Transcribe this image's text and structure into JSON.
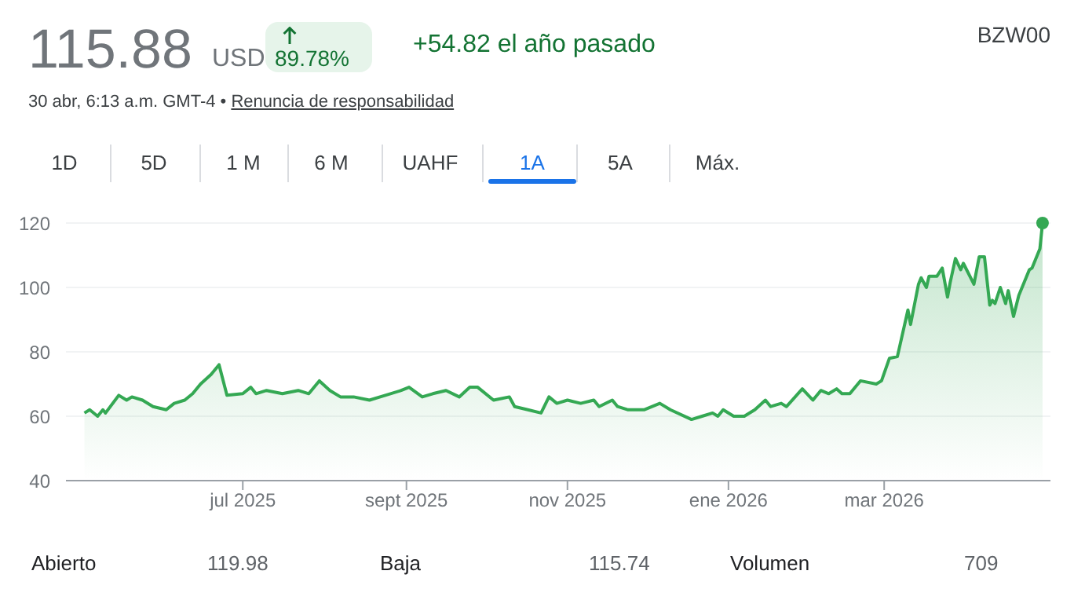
{
  "chart_data": {
    "type": "area",
    "title": "115.88",
    "subtitle": "+54.82 el año pasado",
    "annotations": [
      "USD",
      "89.78%",
      "BZW00",
      "30 abr, 6:13 a.m. GMT-4 • ",
      "Renuncia de responsabilidad",
      "1D",
      "5D",
      "1 M",
      "6 M",
      "UAHF",
      "1A",
      "5A",
      "Máx.",
      "Abierto",
      "119.98",
      "Baja",
      "115.74",
      "Volumen",
      "709"
    ],
    "x": [
      "2025-05-02",
      "2025-05-04",
      "2025-05-07",
      "2025-05-09",
      "2025-05-10",
      "2025-05-15",
      "2025-05-18",
      "2025-05-20",
      "2025-05-24",
      "2025-05-28",
      "2025-06-02",
      "2025-06-05",
      "2025-06-09",
      "2025-06-12",
      "2025-06-15",
      "2025-06-19",
      "2025-06-22",
      "2025-06-25",
      "2025-07-01",
      "2025-07-04",
      "2025-07-06",
      "2025-07-10",
      "2025-07-16",
      "2025-07-22",
      "2025-07-26",
      "2025-07-30",
      "2025-08-03",
      "2025-08-07",
      "2025-08-12",
      "2025-08-18",
      "2025-08-24",
      "2025-08-30",
      "2025-09-02",
      "2025-09-07",
      "2025-09-11",
      "2025-09-16",
      "2025-09-21",
      "2025-09-25",
      "2025-09-28",
      "2025-10-04",
      "2025-10-10",
      "2025-10-12",
      "2025-10-17",
      "2025-10-22",
      "2025-10-25",
      "2025-10-28",
      "2025-11-01",
      "2025-11-06",
      "2025-11-11",
      "2025-11-13",
      "2025-11-18",
      "2025-11-20",
      "2025-11-24",
      "2025-11-30",
      "2025-12-06",
      "2025-12-10",
      "2025-12-18",
      "2025-12-22",
      "2025-12-26",
      "2025-12-28",
      "2025-12-30",
      "2026-01-03",
      "2026-01-07",
      "2026-01-11",
      "2026-01-15",
      "2026-01-17",
      "2026-01-21",
      "2026-01-23",
      "2026-01-29",
      "2026-02-02",
      "2026-02-05",
      "2026-02-08",
      "2026-02-11",
      "2026-02-13",
      "2026-02-16",
      "2026-02-20",
      "2026-02-26",
      "2026-02-28",
      "2026-03-03",
      "2026-03-06",
      "2026-03-10",
      "2026-03-11",
      "2026-03-14",
      "2026-03-15",
      "2026-03-17",
      "2026-03-18",
      "2026-03-21",
      "2026-03-23",
      "2026-03-25",
      "2026-03-26",
      "2026-03-28",
      "2026-03-30",
      "2026-03-31",
      "2026-04-04",
      "2026-04-06",
      "2026-04-08",
      "2026-04-10",
      "2026-04-11",
      "2026-04-12",
      "2026-04-14",
      "2026-04-16",
      "2026-04-17",
      "2026-04-19",
      "2026-04-21",
      "2026-04-25",
      "2026-04-26",
      "2026-04-29",
      "2026-04-30"
    ],
    "series": [
      {
        "color": "#34a853",
        "values": [
          61,
          62,
          60,
          62,
          61,
          66.5,
          65,
          66,
          65,
          63,
          62,
          64,
          65,
          67,
          70,
          73,
          76,
          66.5,
          67,
          69,
          67,
          68,
          67,
          68,
          67,
          71,
          68,
          66,
          66,
          65,
          66.5,
          68,
          69,
          66,
          67,
          68,
          66,
          69,
          69,
          65,
          66,
          63,
          62,
          61,
          66,
          64,
          65,
          64,
          65,
          63,
          65,
          63,
          62,
          62,
          64,
          62,
          59,
          60,
          61,
          60,
          62,
          60,
          60,
          62,
          65,
          63,
          64,
          63,
          68.5,
          65,
          68,
          67,
          68.5,
          67,
          67,
          71,
          70,
          71,
          78,
          78.5,
          93,
          88.5,
          101,
          103,
          100,
          103.5,
          103.5,
          106,
          97,
          101.5,
          109,
          105.5,
          107.5,
          101,
          109.5,
          109.5,
          94.5,
          96,
          95,
          100,
          95,
          99,
          91,
          97.5,
          105.5,
          106,
          112,
          120
        ]
      }
    ],
    "xlim": [
      "2025-04-25",
      "2026-05-03"
    ],
    "xticks": [
      {
        "value": "2025-07-01",
        "label": "jul 2025"
      },
      {
        "value": "2025-09-01",
        "label": "sept 2025"
      },
      {
        "value": "2025-11-01",
        "label": "nov 2025"
      },
      {
        "value": "2026-01-01",
        "label": "ene 2026"
      },
      {
        "value": "2026-03-01",
        "label": "mar 2026"
      }
    ],
    "ylim": [
      40,
      120
    ],
    "yticks": [
      40,
      60,
      80,
      100,
      120
    ],
    "grid": "y"
  }
}
